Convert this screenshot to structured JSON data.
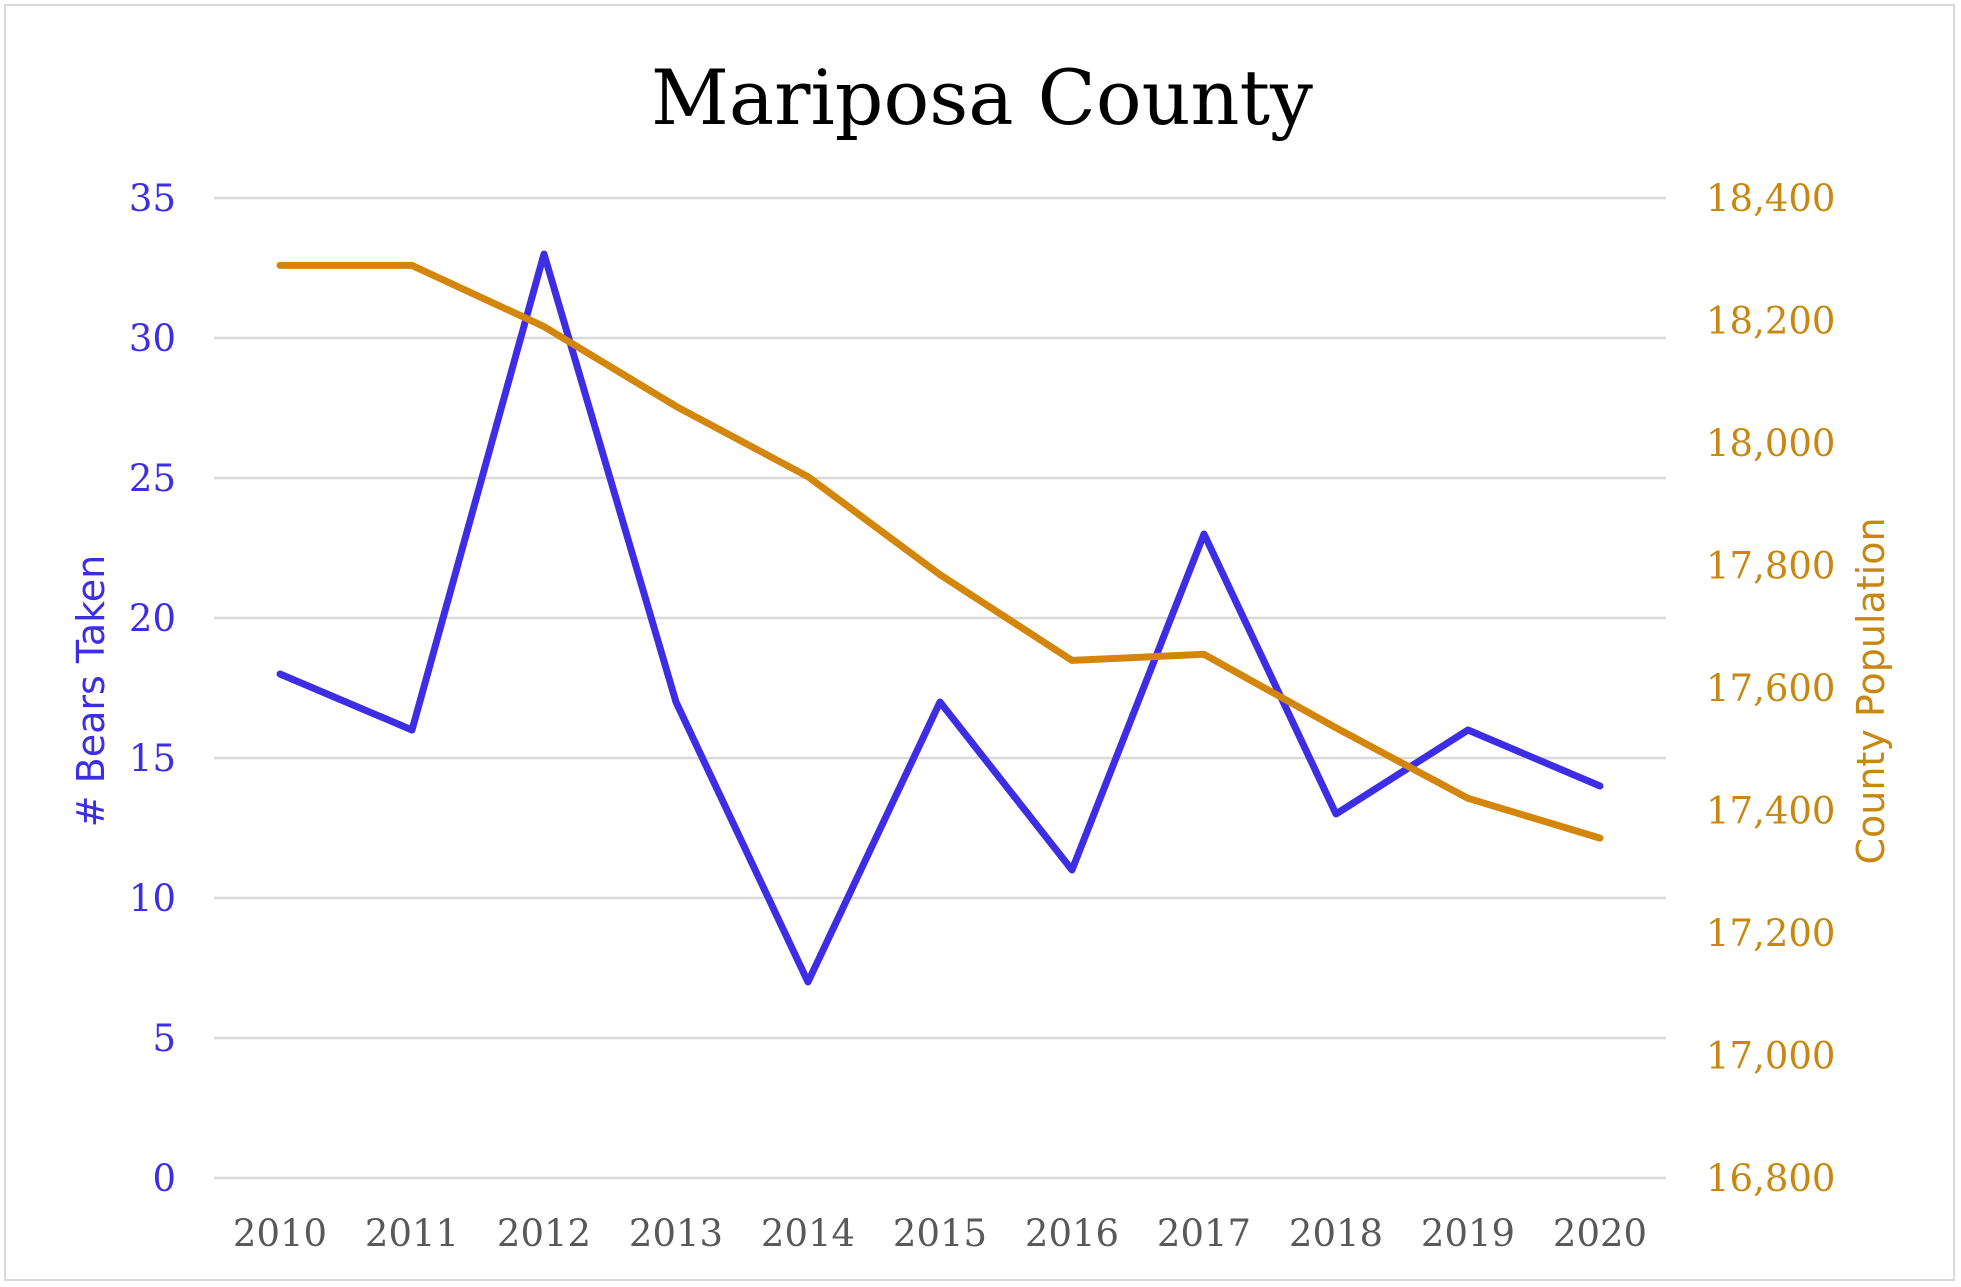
{
  "chart_data": {
    "type": "line",
    "title": "Mariposa County",
    "categories": [
      "2010",
      "2011",
      "2012",
      "2013",
      "2014",
      "2015",
      "2016",
      "2017",
      "2018",
      "2019",
      "2020"
    ],
    "series": [
      {
        "name": "# Bears Taken",
        "axis": "left",
        "color": "#3d2ee6",
        "values": [
          18,
          16,
          33,
          17,
          7,
          17,
          11,
          23,
          13,
          16,
          14
        ]
      },
      {
        "name": "County Population",
        "axis": "right",
        "color": "#d4860b",
        "values": [
          18290,
          18290,
          18190,
          18060,
          17945,
          17785,
          17645,
          17655,
          17535,
          17420,
          17355
        ]
      }
    ],
    "ylabel": "# Bears Taken",
    "ylabel_right": "County Population",
    "ylim": [
      0,
      35
    ],
    "ylim_right": [
      16800,
      18400
    ],
    "yticks": [
      "0",
      "5",
      "10",
      "15",
      "20",
      "25",
      "30",
      "35"
    ],
    "yticks_right": [
      "16,800",
      "17,000",
      "17,200",
      "17,400",
      "17,600",
      "17,800",
      "18,000",
      "18,200",
      "18,400"
    ],
    "grid": true,
    "legend": "none",
    "colors": {
      "left_axis": "#3d2ee6",
      "right_axis": "#c8870f",
      "x_axis": "#595959",
      "grid": "#d9d9d9"
    }
  }
}
